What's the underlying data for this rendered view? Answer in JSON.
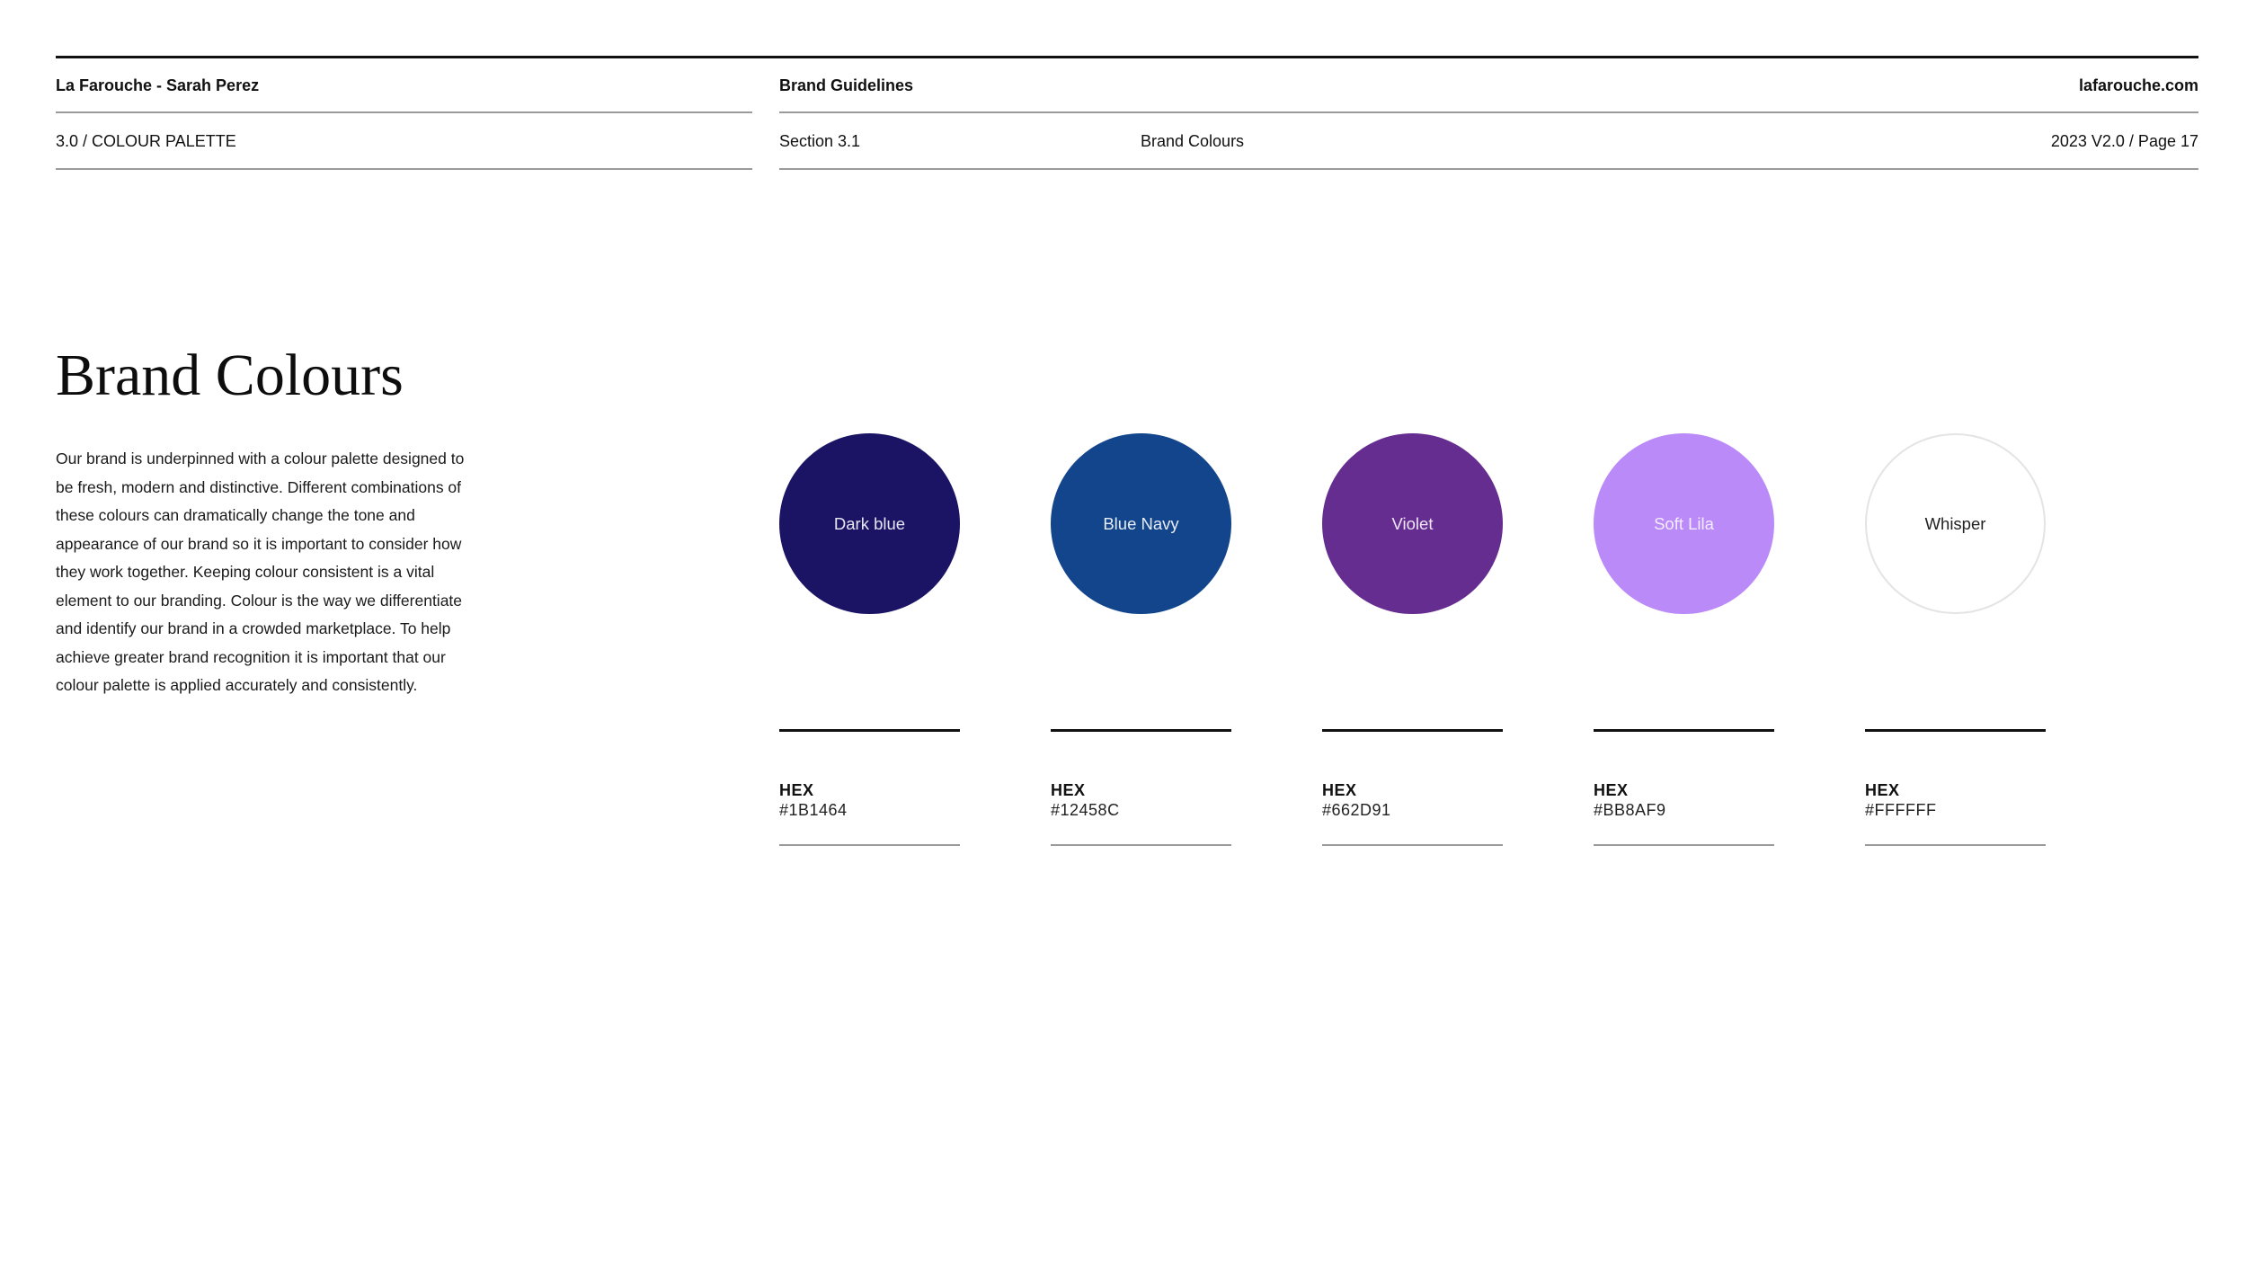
{
  "header": {
    "client": "La Farouche - Sarah Perez",
    "document": "Brand Guidelines",
    "website": "lafarouche.com",
    "section_path": "3.0 / COLOUR PALETTE",
    "section_number": "Section 3.1",
    "section_name": "Brand Colours",
    "version_page": "2023 V2.0 / Page 17"
  },
  "main": {
    "title": "Brand Colours",
    "intro": "Our brand is underpinned with a colour palette designed to be fresh, modern and distinctive. Different combinations of these colours can dramatically change the tone and appearance of our brand so it is important to consider how they work together. Keeping colour consistent is a vital element to our branding. Colour is the way we differentiate and identify our brand in a crowded marketplace. To help achieve greater brand recognition it is important that our colour palette is applied accurately and consistently."
  },
  "palette": [
    {
      "name": "Dark blue",
      "hex_label": "HEX",
      "hex": "#1B1464",
      "color": "#1B1464",
      "text_color": "#e6e6f2"
    },
    {
      "name": "Blue Navy",
      "hex_label": "HEX",
      "hex": "#12458C",
      "color": "#12458C",
      "text_color": "#e6ecf5"
    },
    {
      "name": "Violet",
      "hex_label": "HEX",
      "hex": "#662D91",
      "color": "#662D91",
      "text_color": "#eee6f5"
    },
    {
      "name": "Soft Lila",
      "hex_label": "HEX",
      "hex": "#BB8AF9",
      "color": "#BB8AF9",
      "text_color": "#f3ecfd"
    },
    {
      "name": "Whisper",
      "hex_label": "HEX",
      "hex": "#FFFFFF",
      "color": "#FFFFFF",
      "text_color": "#222222"
    }
  ]
}
